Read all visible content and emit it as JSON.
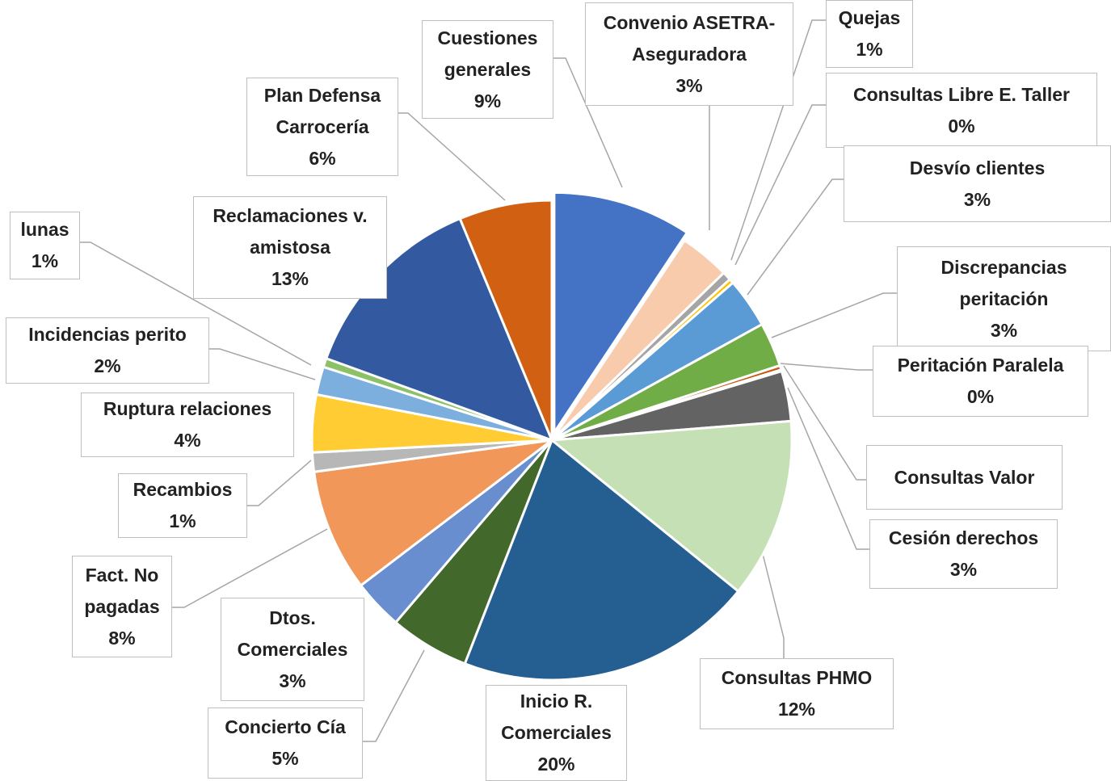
{
  "chart_data": {
    "type": "pie",
    "categories": [
      "Cuestiones generales",
      "Convenio ASETRA-Aseguradora",
      "Quejas",
      "Consultas Libre E. Taller",
      "Desvío clientes",
      "Discrepancias peritación",
      "Peritación Paralela",
      "Consultas Valor",
      "Cesión derechos",
      "Consultas PHMO",
      "Inicio R. Comerciales",
      "Concierto Cía",
      "Dtos. Comerciales",
      "Fact. No pagadas",
      "Recambios",
      "Ruptura relaciones",
      "Incidencias perito",
      "lunas",
      "Reclamaciones v. amistosa",
      "Plan Defensa Carrocería"
    ],
    "values": [
      9.4,
      3.4,
      0.6,
      0.3,
      3.4,
      3.0,
      0.3,
      0.1,
      3.4,
      12.2,
      20.2,
      5.4,
      3.4,
      8.3,
      1.3,
      3.9,
      1.9,
      0.6,
      13.3,
      6.3
    ],
    "value_labels": [
      "9%",
      "3%",
      "1%",
      "0%",
      "3%",
      "3%",
      "0%",
      null,
      "3%",
      "12%",
      "20%",
      "5%",
      "3%",
      "8%",
      "1%",
      "4%",
      "2%",
      "1%",
      "13%",
      "6%"
    ],
    "colors": [
      "#4472c4",
      "#f8cbad",
      "#a5a5a5",
      "#ffc000",
      "#5b9bd5",
      "#70ad47",
      "#c55a11",
      "#7f7f7f",
      "#636363",
      "#c5e0b4",
      "#255e91",
      "#43682b",
      "#698ed0",
      "#f1975a",
      "#b7b7b7",
      "#ffcd33",
      "#7cafdd",
      "#8cc168",
      "#335aa1",
      "#d26012"
    ]
  }
}
